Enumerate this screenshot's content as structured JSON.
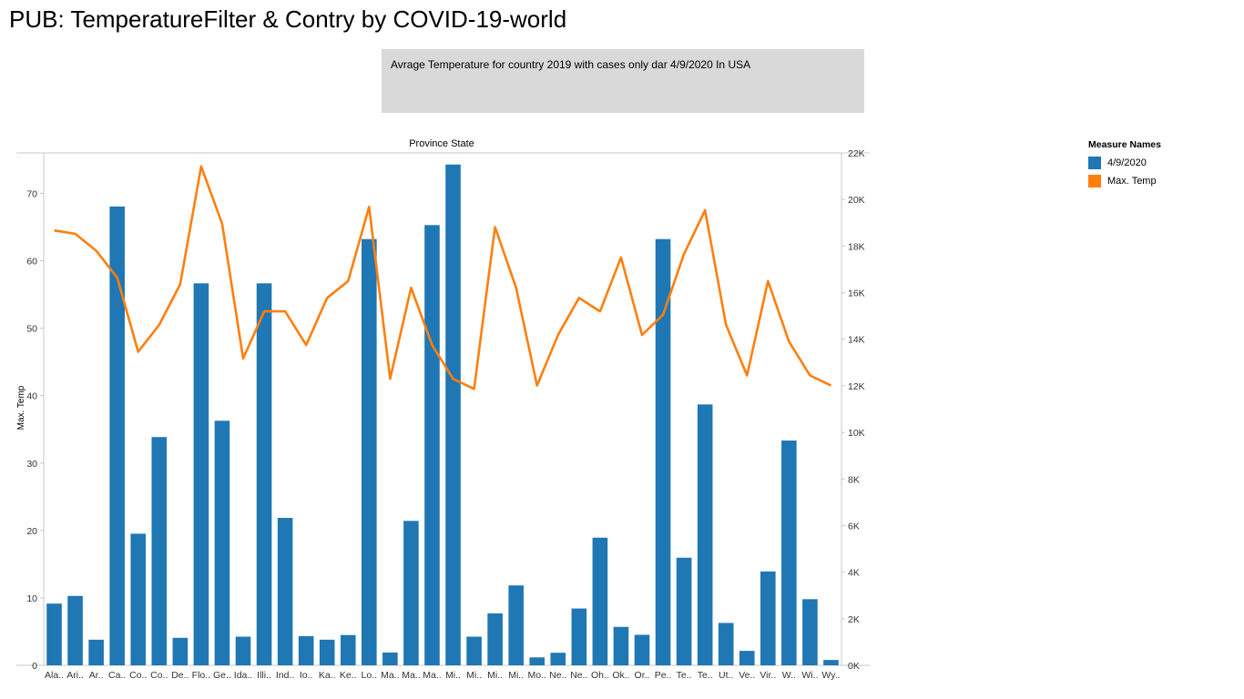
{
  "page": {
    "title": "PUB: TemperatureFilter & Contry by COVID-19-world",
    "subtitle": "Avrage Temperature for country 2019 with cases only dar 4/9/2020 In USA"
  },
  "legend": {
    "title": "Measure Names",
    "items": [
      {
        "label": "4/9/2020",
        "color": "#1f77b4"
      },
      {
        "label": "Max. Temp",
        "color": "#ff7f0e"
      }
    ]
  },
  "chart_data": {
    "type": "bar",
    "title": "Province State",
    "ylabel_left": "Max. Temp",
    "ylabel_right": "",
    "grid": false,
    "legend_position": "right",
    "categories": [
      "Ala..",
      "Ari..",
      "Ar..",
      "Ca..",
      "Co..",
      "Co..",
      "De..",
      "Flo..",
      "Ge..",
      "Ida..",
      "Illi..",
      "Ind..",
      "Io..",
      "Ka..",
      "Ke..",
      "Lo..",
      "Ma..",
      "Ma..",
      "Ma..",
      "Mi..",
      "Mi..",
      "Mi..",
      "Mi..",
      "Mo..",
      "Ne..",
      "Ne..",
      "Oh..",
      "Ok..",
      "Or..",
      "Pe..",
      "Te..",
      "Te..",
      "Ut..",
      "Ve..",
      "Vir..",
      "W..",
      "Wi..",
      "Wy.."
    ],
    "y_left": {
      "ticks": [
        "0",
        "10",
        "20",
        "30",
        "40",
        "50",
        "60",
        "70"
      ],
      "range": [
        0,
        76
      ]
    },
    "y_right": {
      "ticks": [
        "0K",
        "2K",
        "4K",
        "6K",
        "8K",
        "10K",
        "12K",
        "14K",
        "16K",
        "18K",
        "20K",
        "22K"
      ],
      "range": [
        0,
        22000
      ]
    },
    "series": [
      {
        "name": "4/9/2020",
        "axis": "right",
        "mark": "bar",
        "color": "#1f77b4",
        "values": [
          2650,
          2980,
          1100,
          19700,
          5650,
          9800,
          1180,
          16400,
          10500,
          1230,
          16400,
          6330,
          1250,
          1100,
          1300,
          18300,
          550,
          6200,
          18900,
          21500,
          1230,
          2230,
          3430,
          340,
          540,
          2440,
          5480,
          1650,
          1310,
          18300,
          4620,
          11200,
          1820,
          620,
          4030,
          9650,
          2840,
          230
        ]
      },
      {
        "name": "Max. Temp",
        "axis": "left",
        "mark": "line",
        "color": "#ff7f0e",
        "values": [
          64.5,
          64,
          61.5,
          57.5,
          46.5,
          50.5,
          56.5,
          74,
          65.5,
          45.5,
          52.5,
          52.5,
          47.5,
          54.5,
          57,
          68,
          42.5,
          56,
          47.5,
          42.5,
          41,
          65,
          56,
          41.5,
          49,
          54.5,
          52.5,
          60.5,
          49,
          52,
          61,
          67.5,
          50.5,
          43,
          57,
          48,
          43,
          41.5
        ]
      }
    ]
  }
}
